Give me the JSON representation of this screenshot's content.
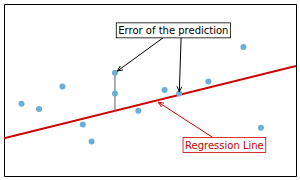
{
  "chart_data": {
    "type": "scatter",
    "xlim": [
      0.0,
      1.0
    ],
    "ylim": [
      0.0,
      1.0
    ],
    "xticks": [],
    "yticks": [],
    "tick_labels": false,
    "series": [
      {
        "type": "scatter",
        "color": "#6baed6",
        "x": [
          0.06,
          0.12,
          0.2,
          0.27,
          0.3,
          0.38,
          0.46,
          0.55,
          0.7,
          0.82,
          0.88,
          0.38,
          0.6
        ],
        "values": [
          0.42,
          0.39,
          0.52,
          0.3,
          0.2,
          0.48,
          0.38,
          0.5,
          0.55,
          0.75,
          0.28,
          0.6,
          0.48
        ]
      },
      {
        "type": "line",
        "color": "#cc0000",
        "x": [
          0.0,
          1.0
        ],
        "values": [
          0.22,
          0.64
        ]
      }
    ],
    "residuals": {
      "color": "#777777",
      "x": [
        0.38,
        0.6
      ],
      "line": [
        0.3796,
        0.472
      ],
      "values": [
        0.6,
        0.48
      ]
    },
    "annotations": [
      {
        "text": "Error of the prediction",
        "x": 0.58,
        "y": 0.88,
        "targets": [
          {
            "x": 0.38,
            "y": 0.6
          },
          {
            "x": 0.6,
            "y": 0.472
          }
        ]
      },
      {
        "text": "Regression Line",
        "x": 0.62,
        "y": 0.18,
        "color": "#cc0000",
        "targets": [
          {
            "x": 0.52,
            "y": 0.4384
          }
        ]
      }
    ]
  }
}
